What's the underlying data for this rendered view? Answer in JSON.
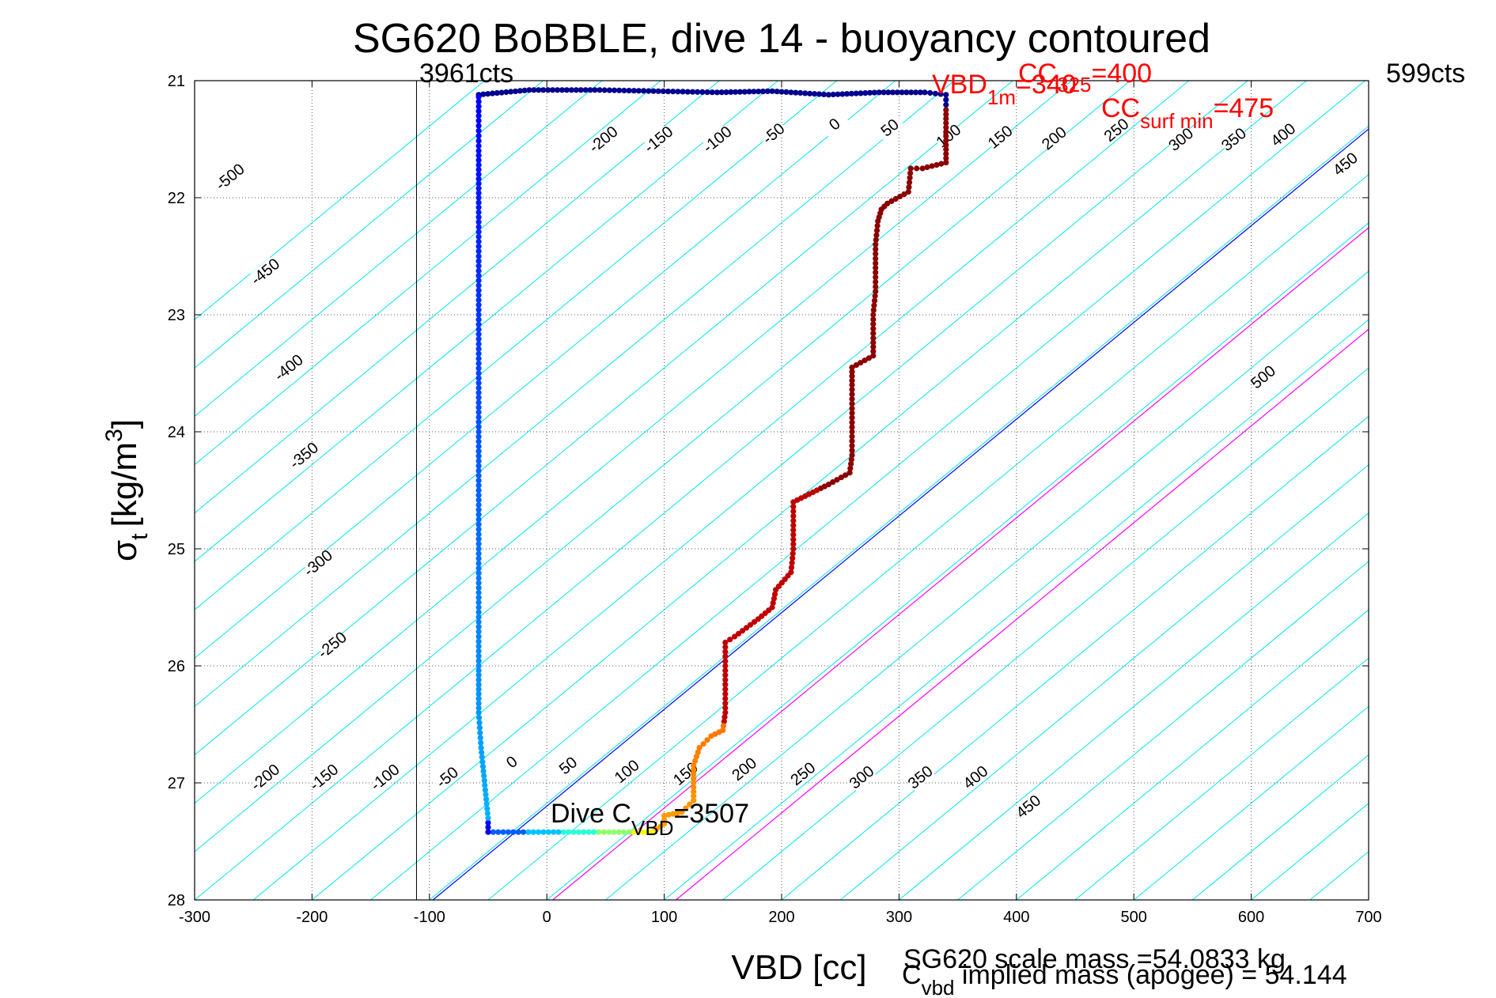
{
  "chart_data": {
    "type": "scatter",
    "title": "SG620 BoBBLE, dive 14 - buoyancy contoured",
    "xlabel": "VBD [cc]",
    "ylabel_main": "σ",
    "ylabel_sub": "t",
    "ylabel_units": "[kg/m",
    "ylabel_sup": "3",
    "ylabel_close": "]",
    "xlim": [
      -300,
      700
    ],
    "ylim": [
      21,
      28
    ],
    "y_reversed": true,
    "grid": true,
    "x_ticks": [
      "-300",
      "-200",
      "-100",
      "0",
      "100",
      "200",
      "300",
      "400",
      "500",
      "600",
      "700"
    ],
    "y_ticks": [
      "21",
      "22",
      "23",
      "24",
      "25",
      "26",
      "27",
      "28"
    ],
    "buoyancy_contours": {
      "color": "#00e5ee",
      "slope_cc_per_sigma": 121,
      "values": [
        -900,
        -850,
        -800,
        -750,
        -700,
        -650,
        -600,
        -550,
        -500,
        -450,
        -400,
        -350,
        -300,
        -250,
        -200,
        -150,
        -100,
        -50,
        0,
        50,
        100,
        150,
        200,
        250,
        300,
        350,
        400,
        450,
        500,
        550,
        600,
        650,
        700,
        750,
        800,
        850,
        900
      ],
      "upper_labels": [
        {
          "text": "-500",
          "x": -270,
          "y": 21.82
        },
        {
          "text": "-450",
          "x": -240,
          "y": 22.63
        },
        {
          "text": "-400",
          "x": -220,
          "y": 23.45
        },
        {
          "text": "-350",
          "x": -207,
          "y": 24.2
        },
        {
          "text": "-300",
          "x": -195,
          "y": 25.12
        },
        {
          "text": "-250",
          "x": -183,
          "y": 25.82
        },
        {
          "text": "-200",
          "x": 48,
          "y": 21.5
        },
        {
          "text": "-150",
          "x": 95,
          "y": 21.5
        },
        {
          "text": "-100",
          "x": 145,
          "y": 21.5
        },
        {
          "text": "-50",
          "x": 193,
          "y": 21.45
        },
        {
          "text": "0",
          "x": 245,
          "y": 21.37
        },
        {
          "text": "50",
          "x": 292,
          "y": 21.4
        },
        {
          "text": "100",
          "x": 342,
          "y": 21.47
        },
        {
          "text": "150",
          "x": 386,
          "y": 21.48
        },
        {
          "text": "200",
          "x": 432,
          "y": 21.49
        },
        {
          "text": "250",
          "x": 485,
          "y": 21.42
        },
        {
          "text": "300",
          "x": 540,
          "y": 21.5
        },
        {
          "text": "350",
          "x": 585,
          "y": 21.5
        },
        {
          "text": "400",
          "x": 627,
          "y": 21.46
        },
        {
          "text": "450",
          "x": 680,
          "y": 21.71
        },
        {
          "text": "500",
          "x": 610,
          "y": 23.53
        }
      ],
      "lower_labels": [
        {
          "text": "-200",
          "x": -240,
          "y": 26.95
        },
        {
          "text": "-150",
          "x": -190,
          "y": 26.95
        },
        {
          "text": "-100",
          "x": -138,
          "y": 26.95
        },
        {
          "text": "-50",
          "x": -85,
          "y": 26.95
        },
        {
          "text": "0",
          "x": -30,
          "y": 26.82
        },
        {
          "text": "50",
          "x": 18,
          "y": 26.85
        },
        {
          "text": "100",
          "x": 68,
          "y": 26.9
        },
        {
          "text": "150",
          "x": 118,
          "y": 26.92
        },
        {
          "text": "200",
          "x": 168,
          "y": 26.88
        },
        {
          "text": "250",
          "x": 218,
          "y": 26.92
        },
        {
          "text": "300",
          "x": 268,
          "y": 26.95
        },
        {
          "text": "350",
          "x": 318,
          "y": 26.95
        },
        {
          "text": "400",
          "x": 365,
          "y": 26.95
        },
        {
          "text": "450",
          "x": 410,
          "y": 27.2
        }
      ]
    },
    "reference_lines": [
      {
        "name": "neutral",
        "color": "#0000ff",
        "x0": -97,
        "y0": 28,
        "slope_cc_per_sigma": 121
      },
      {
        "name": "limit1",
        "color": "#ff00ff",
        "x0": 5,
        "y0": 28,
        "slope_cc_per_sigma": 121
      },
      {
        "name": "limit2",
        "color": "#ff00ff",
        "x0": 110,
        "y0": 28,
        "slope_cc_per_sigma": 121
      }
    ],
    "vertical_line": {
      "x": -111,
      "color": "#000000"
    },
    "series": [
      {
        "points": [
          [
            -58,
            21.12
          ],
          [
            -15,
            21.08
          ],
          [
            45,
            21.08
          ],
          [
            95,
            21.09
          ],
          [
            145,
            21.1
          ],
          [
            192,
            21.09
          ],
          [
            240,
            21.12
          ],
          [
            283,
            21.1
          ],
          [
            322,
            21.1
          ],
          [
            340,
            21.12
          ],
          [
            340,
            21.25
          ],
          [
            340,
            21.4
          ],
          [
            340,
            21.55
          ],
          [
            340,
            21.7
          ],
          [
            320,
            21.75
          ],
          [
            310,
            21.75
          ],
          [
            308,
            21.95
          ],
          [
            290,
            22.05
          ],
          [
            285,
            22.1
          ],
          [
            282,
            22.2
          ],
          [
            280,
            22.4
          ],
          [
            280,
            22.6
          ],
          [
            280,
            22.8
          ],
          [
            278,
            23.0
          ],
          [
            278,
            23.2
          ],
          [
            278,
            23.35
          ],
          [
            260,
            23.45
          ],
          [
            260,
            23.6
          ],
          [
            260,
            23.8
          ],
          [
            260,
            24.0
          ],
          [
            260,
            24.2
          ],
          [
            258,
            24.35
          ],
          [
            240,
            24.45
          ],
          [
            220,
            24.55
          ],
          [
            210,
            24.6
          ],
          [
            210,
            24.8
          ],
          [
            210,
            25.0
          ],
          [
            208,
            25.2
          ],
          [
            195,
            25.35
          ],
          [
            192,
            25.5
          ],
          [
            180,
            25.6
          ],
          [
            160,
            25.75
          ],
          [
            152,
            25.8
          ],
          [
            152,
            26.0
          ],
          [
            152,
            26.2
          ],
          [
            152,
            26.4
          ],
          [
            150,
            26.55
          ],
          [
            140,
            26.6
          ],
          [
            130,
            26.7
          ],
          [
            125,
            26.85
          ],
          [
            125,
            27.0
          ],
          [
            125,
            27.15
          ],
          [
            115,
            27.25
          ],
          [
            100,
            27.28
          ],
          [
            100,
            27.35
          ],
          [
            90,
            27.42
          ],
          [
            70,
            27.42
          ],
          [
            40,
            27.42
          ],
          [
            10,
            27.42
          ],
          [
            -20,
            27.42
          ],
          [
            -50,
            27.42
          ],
          [
            -50,
            27.3
          ],
          [
            -52,
            27.1
          ],
          [
            -54,
            26.9
          ],
          [
            -56,
            26.7
          ],
          [
            -58,
            26.4
          ],
          [
            -58,
            26.0
          ],
          [
            -58,
            25.5
          ],
          [
            -58,
            25.0
          ],
          [
            -58,
            24.5
          ],
          [
            -58,
            24.0
          ],
          [
            -58,
            23.5
          ],
          [
            -58,
            23.0
          ],
          [
            -58,
            22.5
          ],
          [
            -58,
            22.0
          ],
          [
            -58,
            21.6
          ],
          [
            -58,
            21.3
          ],
          [
            -58,
            21.14
          ]
        ]
      }
    ],
    "annotations": {
      "left_counts": "3961cts",
      "right_counts": "599cts",
      "cc_325_base": "CC",
      "cc_325_sub": "325",
      "cc_325_val": "=400",
      "vbd_1m_base": "VBD",
      "vbd_1m_sub": "1m",
      "vbd_1m_val": "=340",
      "cc_surfmin_base": "CC",
      "cc_surfmin_sub": "surf min",
      "cc_surfmin_val": "=475",
      "dive_c_base": "Dive C",
      "dive_c_sub": "VBD",
      "dive_c_val": "=3507",
      "scale_mass": "SG620 scale mass =54.0833 kg",
      "implied_base": "C",
      "implied_sub": "vbd",
      "implied_text": " implied mass (apogee) = 54.144"
    }
  }
}
